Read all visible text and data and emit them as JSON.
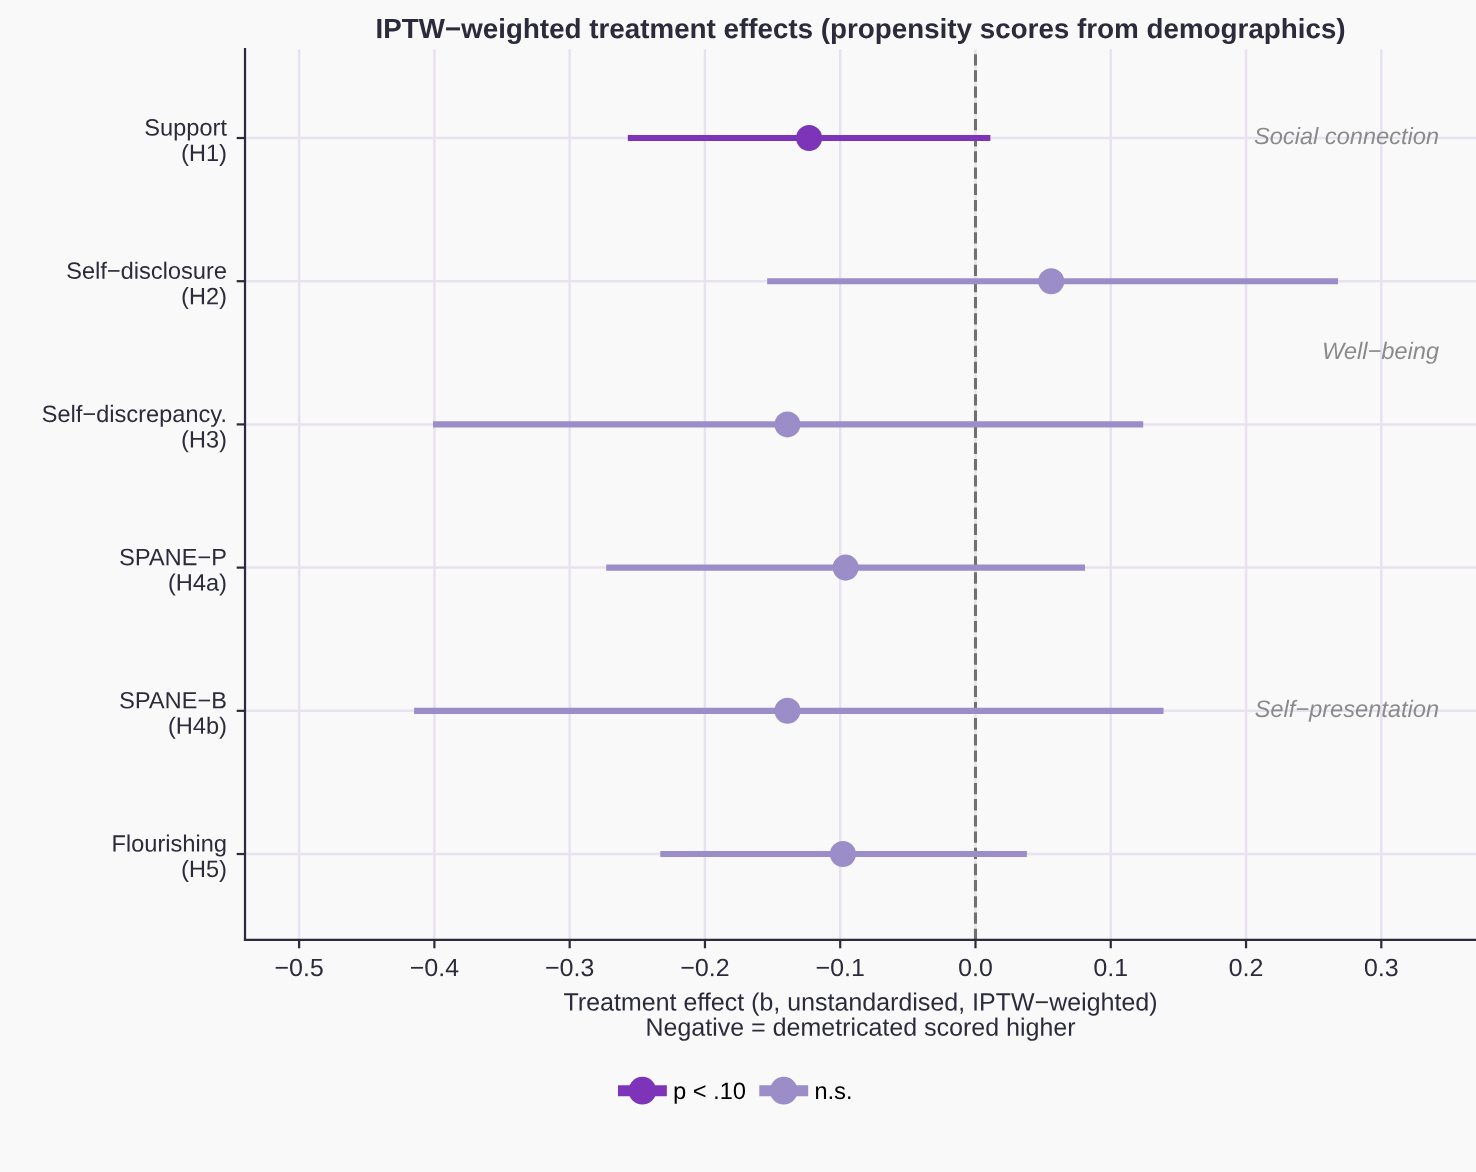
{
  "chart_data": {
    "type": "scatter",
    "orientation": "horizontal",
    "title": "IPTW−weighted treatment effects (propensity scores from demographics)",
    "xlabel": "Treatment effect (b, unstandardised, IPTW−weighted)\nNegative = demetricated scored higher",
    "categories": [
      "Support\n(H1)",
      "Self−disclosure\n(H2)",
      "Self−discrepancy.\n(H3)",
      "SPANE−P\n(H4a)",
      "SPANE−B\n(H4b)",
      "Flourishing\n(H5)"
    ],
    "series": [
      {
        "name": "p < .10",
        "color": "#7e34b9",
        "values": [
          -0.123,
          null,
          null,
          null,
          null,
          null
        ],
        "errors": [
          [
            -0.257,
            0.011
          ],
          null,
          null,
          null,
          null,
          null
        ]
      },
      {
        "name": "n.s.",
        "color": "#9b8dc8",
        "values": [
          null,
          0.056,
          -0.139,
          -0.096,
          -0.139,
          -0.098
        ],
        "errors": [
          null,
          [
            -0.154,
            0.268
          ],
          [
            -0.401,
            0.124
          ],
          [
            -0.273,
            0.081
          ],
          [
            -0.415,
            0.139
          ],
          [
            -0.233,
            0.038
          ]
        ]
      }
    ],
    "xlim": [
      -0.54,
      0.37
    ],
    "xticks": [
      {
        "value": -0.5,
        "label": "−0.5"
      },
      {
        "value": -0.4,
        "label": "−0.4"
      },
      {
        "value": -0.3,
        "label": "−0.3"
      },
      {
        "value": -0.2,
        "label": "−0.2"
      },
      {
        "value": -0.1,
        "label": "−0.1"
      },
      {
        "value": 0,
        "label": "0.0"
      },
      {
        "value": 0.1,
        "label": "0.1"
      },
      {
        "value": 0.2,
        "label": "0.2"
      },
      {
        "value": 0.3,
        "label": "0.3"
      }
    ],
    "ref_lines": [
      {
        "axis": "x",
        "value": 0,
        "color": "#707070",
        "line_style": "dashed"
      }
    ],
    "annotations": [
      "Social connection",
      "Well−being",
      "Self−presentation"
    ],
    "grid": true,
    "legend": "bottom",
    "marker": "circle",
    "line_style": "solid"
  }
}
